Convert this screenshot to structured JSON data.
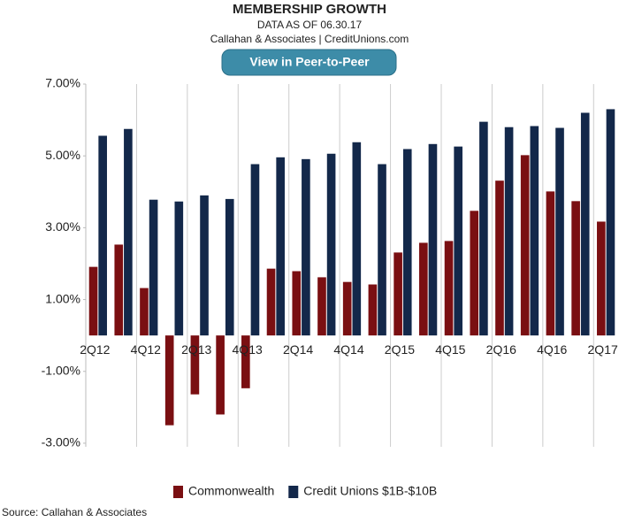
{
  "chart_data": {
    "type": "bar",
    "title": "MEMBERSHIP GROWTH",
    "subtitle": "DATA AS OF 06.30.17",
    "byline": "Callahan & Associates | CreditUnions.com",
    "button": "View in Peer-to-Peer",
    "source": "Source: Callahan & Associates",
    "categories": [
      "2Q12",
      null,
      "4Q12",
      null,
      "2Q13",
      null,
      "4Q13",
      null,
      "2Q14",
      null,
      "4Q14",
      null,
      "2Q15",
      null,
      "4Q15",
      null,
      "2Q16",
      null,
      "4Q16",
      null,
      "2Q17"
    ],
    "series": [
      {
        "name": "Commonwealth",
        "color": "#7a0f12",
        "values": [
          1.91,
          2.53,
          1.32,
          -2.5,
          -1.64,
          -2.2,
          -1.47,
          1.86,
          1.79,
          1.62,
          1.49,
          1.42,
          2.31,
          2.58,
          2.63,
          3.47,
          4.31,
          5.02,
          4.01,
          3.74,
          3.17
        ]
      },
      {
        "name": "Credit Unions $1B-$10B",
        "color": "#13284a",
        "values": [
          5.56,
          5.75,
          3.78,
          3.73,
          3.9,
          3.8,
          4.77,
          4.96,
          4.91,
          5.06,
          5.38,
          4.77,
          5.19,
          5.33,
          5.26,
          5.95,
          5.8,
          5.83,
          5.78,
          6.2,
          6.3
        ]
      }
    ],
    "ylim": [
      -3.1,
      7
    ],
    "yticks": [
      {
        "value": 7,
        "label": "7.00%"
      },
      {
        "value": 5,
        "label": "5.00%"
      },
      {
        "value": 3,
        "label": "3.00%"
      },
      {
        "value": 1,
        "label": "1.00%"
      },
      {
        "value": -1,
        "label": "-1.00%"
      },
      {
        "value": -3,
        "label": "-3.00%"
      }
    ],
    "legend": "bottom"
  }
}
